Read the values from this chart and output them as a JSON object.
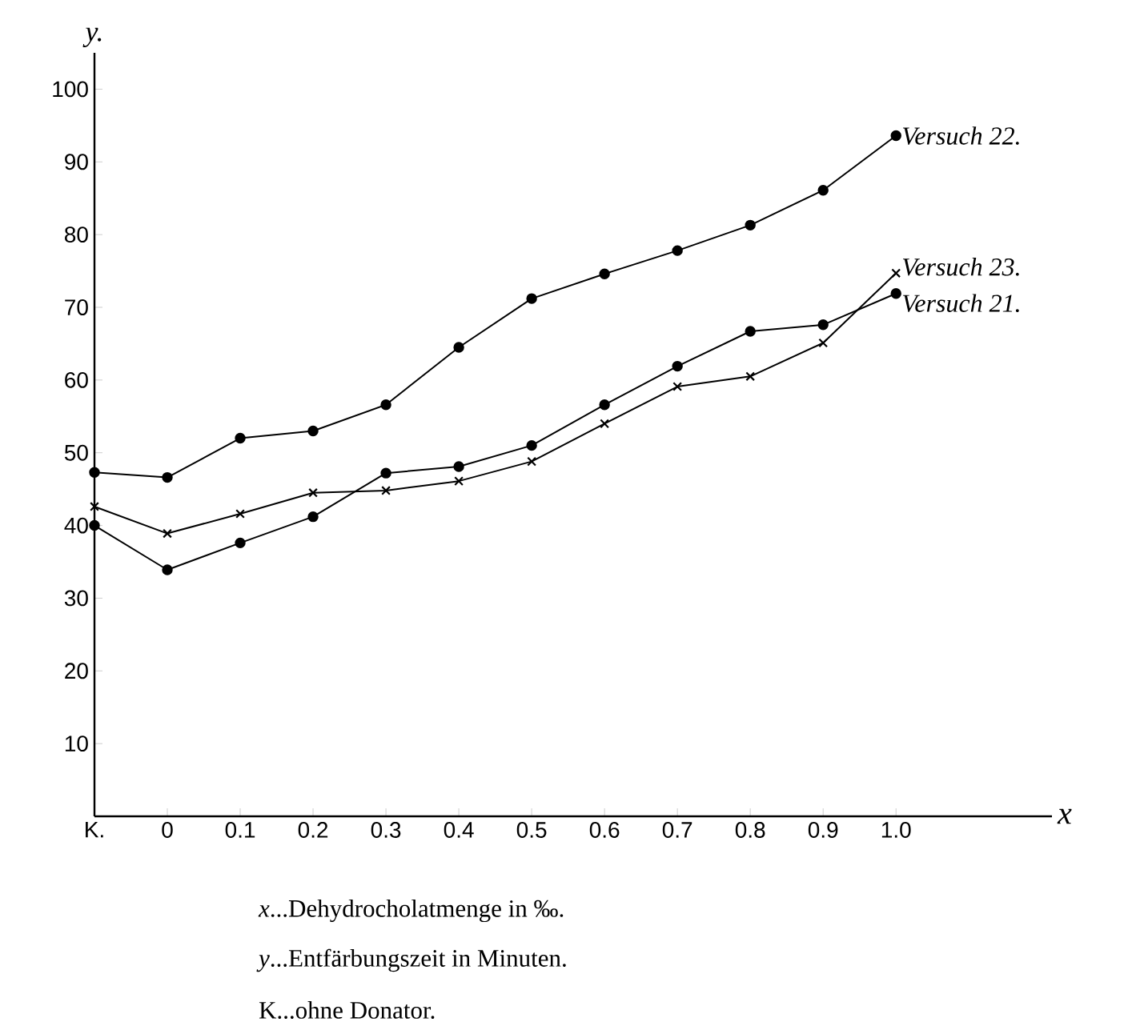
{
  "chart_data": {
    "type": "line",
    "xlabel": "x",
    "ylabel": "y.",
    "categories": [
      "K.",
      "0",
      "0.1",
      "0.2",
      "0.3",
      "0.4",
      "0.5",
      "0.6",
      "0.7",
      "0.8",
      "0.9",
      "1.0"
    ],
    "ylim": [
      0,
      105
    ],
    "yticks": [
      10,
      20,
      30,
      40,
      50,
      60,
      70,
      80,
      90,
      100
    ],
    "grid": false,
    "line_style": "solid",
    "series": [
      {
        "name": "Versuch 22.",
        "color": "#000000",
        "marker": "circle",
        "values": [
          47.3,
          46.6,
          52,
          53,
          56.6,
          64.5,
          71.2,
          74.6,
          77.8,
          81.3,
          86.1,
          93.6
        ]
      },
      {
        "name": "Versuch 23.",
        "color": "#000000",
        "marker": "cross",
        "values": [
          42.6,
          38.9,
          41.6,
          44.5,
          44.8,
          46.1,
          48.8,
          54.0,
          59.1,
          60.5,
          65.1,
          74.7
        ]
      },
      {
        "name": "Versuch 21.",
        "color": "#000000",
        "marker": "circle",
        "values": [
          40.0,
          33.9,
          37.6,
          41.2,
          47.2,
          48.1,
          51.0,
          56.6,
          61.9,
          66.7,
          67.6,
          71.9
        ]
      }
    ],
    "annotations": [
      "*x*...Dehydrocholatmenge in ‰.",
      "*y*...Entfärbungszeit in Minuten.",
      "K...ohne Donator."
    ]
  }
}
